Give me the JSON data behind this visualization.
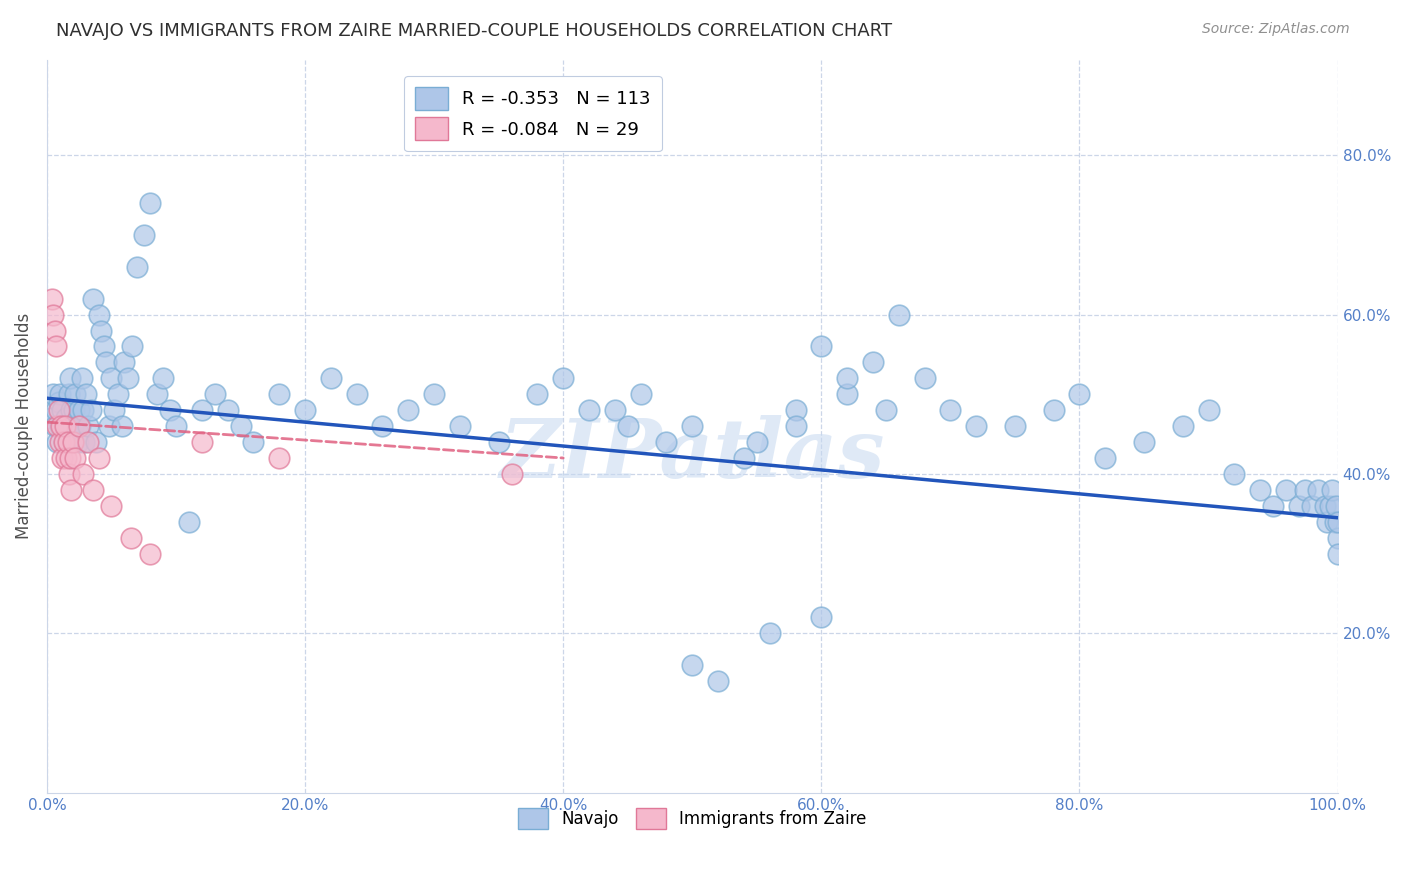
{
  "title": "NAVAJO VS IMMIGRANTS FROM ZAIRE MARRIED-COUPLE HOUSEHOLDS CORRELATION CHART",
  "source": "Source: ZipAtlas.com",
  "ylabel": "Married-couple Households",
  "xlim": [
    0.0,
    1.0
  ],
  "ylim": [
    0.0,
    0.92
  ],
  "xticks": [
    0.0,
    0.2,
    0.4,
    0.6,
    0.8,
    1.0
  ],
  "yticks_right": [
    0.2,
    0.4,
    0.6,
    0.8
  ],
  "xticklabels": [
    "0.0%",
    "20.0%",
    "40.0%",
    "60.0%",
    "80.0%",
    "100.0%"
  ],
  "yticklabels_right": [
    "20.0%",
    "40.0%",
    "60.0%",
    "80.0%"
  ],
  "navajo_color": "#aec6e8",
  "navajo_edge_color": "#7aadd4",
  "zaire_color": "#f5b8cc",
  "zaire_edge_color": "#e07898",
  "trend_navajo_color": "#2255bb",
  "trend_zaire_color": "#e06080",
  "watermark_color": "#c5d8f0",
  "legend_navajo_R": "-0.353",
  "legend_navajo_N": "113",
  "legend_zaire_R": "-0.084",
  "legend_zaire_N": "29",
  "navajo_x": [
    0.003,
    0.005,
    0.006,
    0.007,
    0.008,
    0.009,
    0.01,
    0.01,
    0.012,
    0.013,
    0.015,
    0.016,
    0.017,
    0.018,
    0.019,
    0.02,
    0.021,
    0.022,
    0.023,
    0.024,
    0.025,
    0.026,
    0.027,
    0.028,
    0.029,
    0.03,
    0.032,
    0.034,
    0.036,
    0.038,
    0.04,
    0.042,
    0.044,
    0.046,
    0.048,
    0.05,
    0.052,
    0.055,
    0.058,
    0.06,
    0.063,
    0.066,
    0.07,
    0.075,
    0.08,
    0.085,
    0.09,
    0.095,
    0.1,
    0.11,
    0.12,
    0.13,
    0.14,
    0.15,
    0.16,
    0.18,
    0.2,
    0.22,
    0.24,
    0.26,
    0.28,
    0.3,
    0.32,
    0.35,
    0.38,
    0.4,
    0.42,
    0.45,
    0.48,
    0.5,
    0.55,
    0.58,
    0.6,
    0.62,
    0.65,
    0.68,
    0.7,
    0.72,
    0.75,
    0.78,
    0.8,
    0.82,
    0.85,
    0.88,
    0.9,
    0.92,
    0.94,
    0.95,
    0.96,
    0.97,
    0.975,
    0.98,
    0.985,
    0.99,
    0.992,
    0.994,
    0.996,
    0.998,
    0.999,
    1.0,
    1.0,
    1.0,
    0.5,
    0.52,
    0.54,
    0.56,
    0.44,
    0.46,
    0.58,
    0.6,
    0.62,
    0.64,
    0.66
  ],
  "navajo_y": [
    0.47,
    0.5,
    0.46,
    0.48,
    0.44,
    0.49,
    0.46,
    0.5,
    0.48,
    0.44,
    0.47,
    0.46,
    0.5,
    0.52,
    0.48,
    0.46,
    0.48,
    0.5,
    0.46,
    0.44,
    0.48,
    0.46,
    0.52,
    0.48,
    0.44,
    0.5,
    0.46,
    0.48,
    0.62,
    0.44,
    0.6,
    0.58,
    0.56,
    0.54,
    0.46,
    0.52,
    0.48,
    0.5,
    0.46,
    0.54,
    0.52,
    0.56,
    0.66,
    0.7,
    0.74,
    0.5,
    0.52,
    0.48,
    0.46,
    0.34,
    0.48,
    0.5,
    0.48,
    0.46,
    0.44,
    0.5,
    0.48,
    0.52,
    0.5,
    0.46,
    0.48,
    0.5,
    0.46,
    0.44,
    0.5,
    0.52,
    0.48,
    0.46,
    0.44,
    0.46,
    0.44,
    0.48,
    0.56,
    0.5,
    0.48,
    0.52,
    0.48,
    0.46,
    0.46,
    0.48,
    0.5,
    0.42,
    0.44,
    0.46,
    0.48,
    0.4,
    0.38,
    0.36,
    0.38,
    0.36,
    0.38,
    0.36,
    0.38,
    0.36,
    0.34,
    0.36,
    0.38,
    0.34,
    0.36,
    0.32,
    0.34,
    0.3,
    0.16,
    0.14,
    0.42,
    0.2,
    0.48,
    0.5,
    0.46,
    0.22,
    0.52,
    0.54,
    0.6
  ],
  "zaire_x": [
    0.004,
    0.005,
    0.006,
    0.007,
    0.008,
    0.009,
    0.01,
    0.011,
    0.012,
    0.013,
    0.014,
    0.015,
    0.016,
    0.017,
    0.018,
    0.019,
    0.02,
    0.022,
    0.025,
    0.028,
    0.032,
    0.036,
    0.04,
    0.05,
    0.065,
    0.08,
    0.12,
    0.18,
    0.36
  ],
  "zaire_y": [
    0.62,
    0.6,
    0.58,
    0.56,
    0.46,
    0.48,
    0.44,
    0.46,
    0.42,
    0.44,
    0.46,
    0.42,
    0.44,
    0.4,
    0.42,
    0.38,
    0.44,
    0.42,
    0.46,
    0.4,
    0.44,
    0.38,
    0.42,
    0.36,
    0.32,
    0.3,
    0.44,
    0.42,
    0.4
  ],
  "navajo_trend_x": [
    0.0,
    1.0
  ],
  "navajo_trend_y": [
    0.495,
    0.345
  ],
  "zaire_trend_x": [
    0.0,
    0.4
  ],
  "zaire_trend_y": [
    0.465,
    0.42
  ],
  "background_color": "#ffffff",
  "grid_color": "#ccd6e8",
  "axis_color": "#5580c8",
  "tick_color": "#5580c8",
  "title_color": "#303030",
  "source_color": "#909090",
  "watermark": "ZIPatlas"
}
